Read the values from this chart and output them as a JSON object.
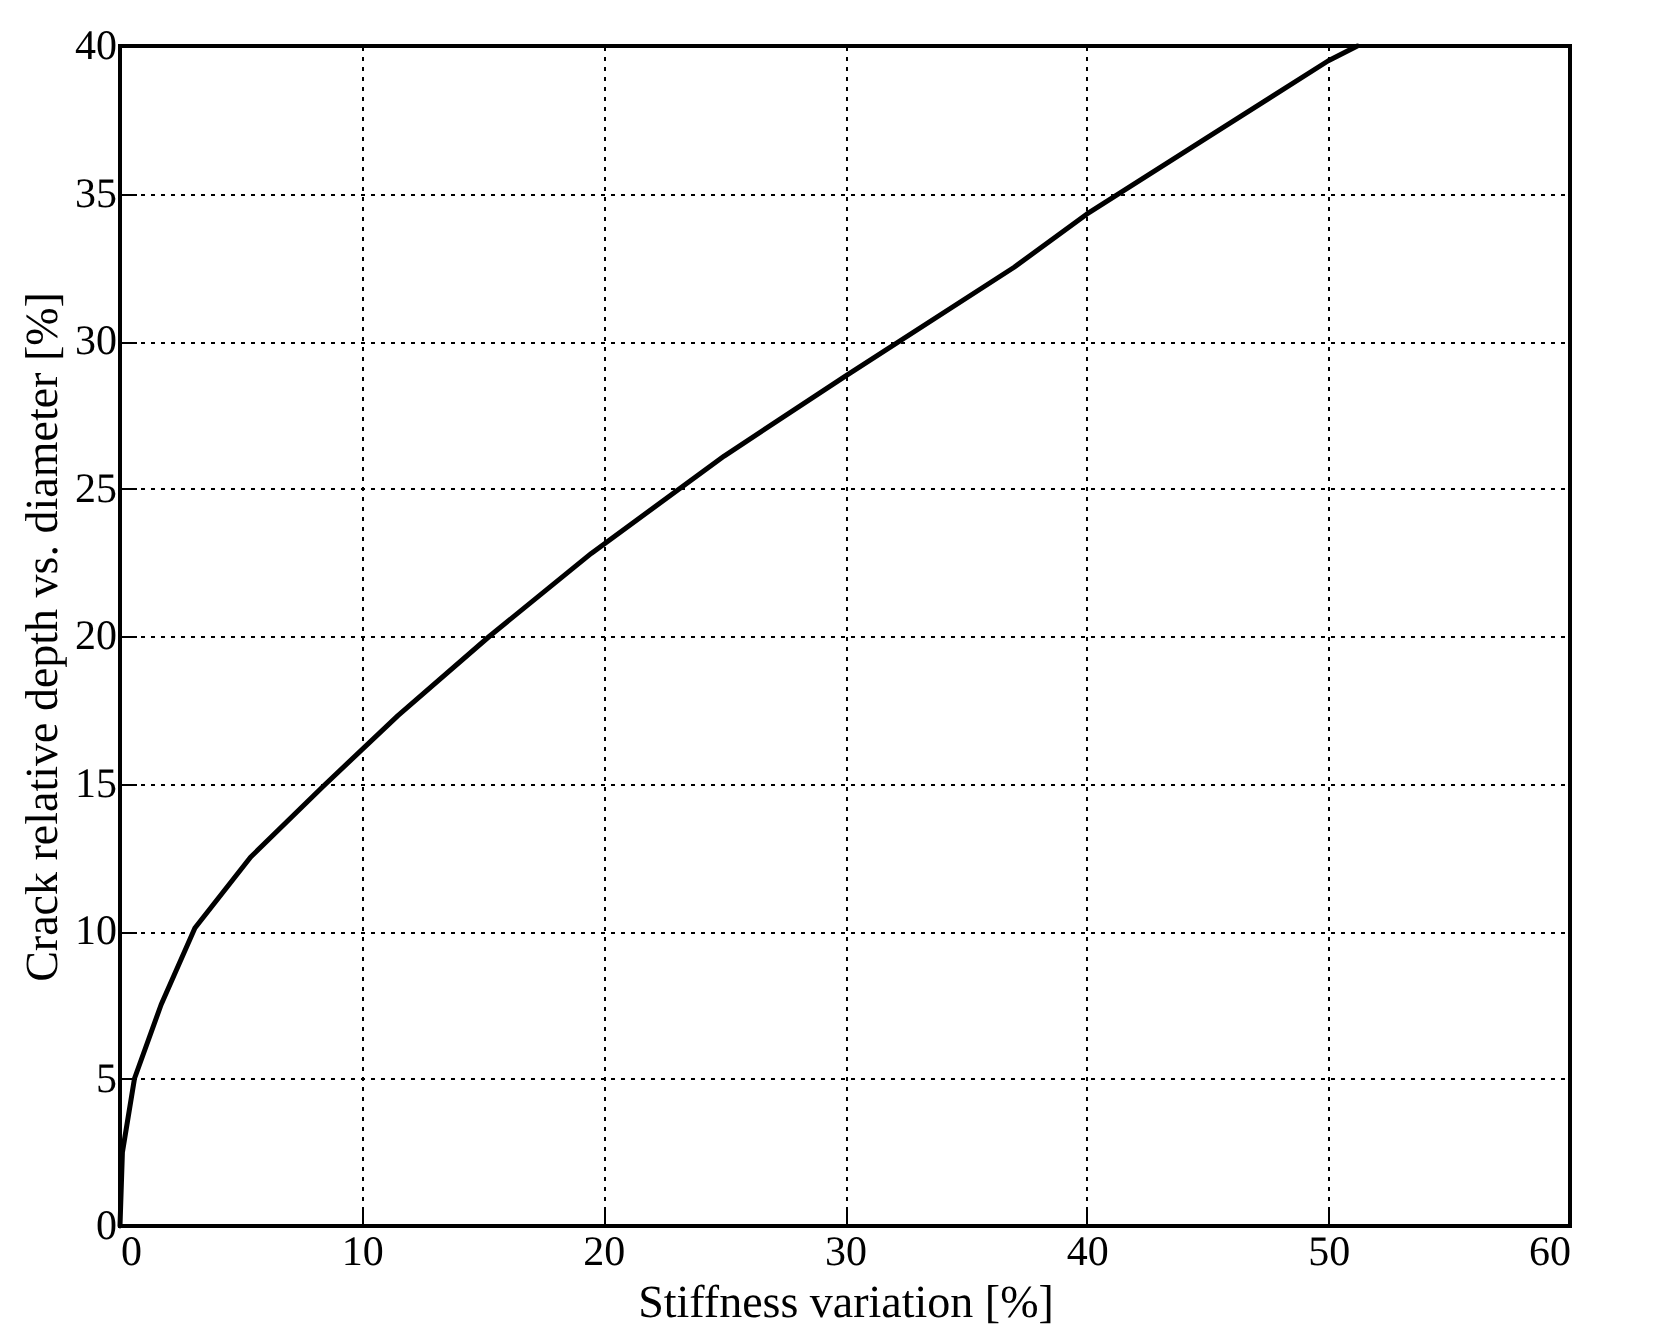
{
  "chart_data": {
    "type": "line",
    "xlabel": "Stiffness variation [%]",
    "ylabel": "Crack relative depth vs. diameter [%]",
    "x": [
      0,
      0.1,
      0.6,
      1.7,
      3.1,
      5.4,
      8.4,
      11.5,
      15.3,
      19.5,
      25,
      30,
      37,
      40,
      45,
      50,
      51.2
    ],
    "series": [
      {
        "color": "#000000",
        "values": [
          0,
          2.5,
          5.0,
          7.5,
          10.1,
          12.5,
          14.9,
          17.3,
          20.0,
          22.8,
          26.1,
          28.8,
          32.5,
          34.3,
          36.9,
          39.5,
          40
        ]
      }
    ],
    "xlim": [
      0,
      60
    ],
    "xticks": [
      0,
      10,
      20,
      30,
      40,
      50,
      60
    ],
    "ylim": [
      0,
      40
    ],
    "yticks": [
      0,
      5,
      10,
      15,
      20,
      25,
      30,
      35,
      40
    ],
    "grid": true,
    "line_style": "solid",
    "marker": "none"
  }
}
